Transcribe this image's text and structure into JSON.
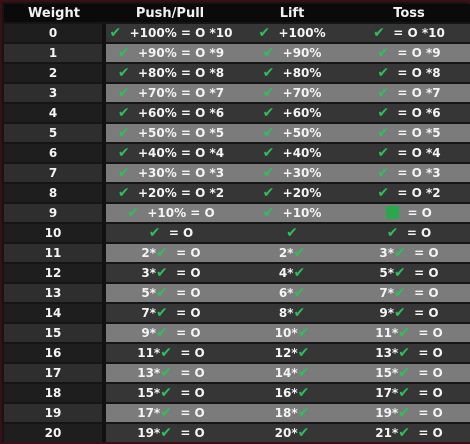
{
  "header": {
    "weight": "Weight",
    "push_pull": "Push/Pull",
    "lift": "Lift",
    "toss": "Toss"
  },
  "icons": {
    "logo": "chess-rook-emblem-icon",
    "check": "checkmark-icon",
    "square": "square-icon"
  },
  "colors": {
    "check": "#2fbf5a",
    "row_light": "#7b7b7b",
    "row_dark": "#363636",
    "border": "#3a1016"
  },
  "rows": [
    {
      "w": "0",
      "pp": {
        "pre": "",
        "post": "+100% = O *10",
        "ring": "O",
        "mult": "*10"
      },
      "lift": {
        "post": "+100%"
      },
      "toss": {
        "post": "= O *10"
      }
    },
    {
      "w": "1",
      "pp": {
        "post": "+90% = O *9"
      },
      "lift": {
        "post": "+90%"
      },
      "toss": {
        "post": "= O *9"
      }
    },
    {
      "w": "2",
      "pp": {
        "post": "+80% = O *8"
      },
      "lift": {
        "post": "+80%"
      },
      "toss": {
        "post": "= O *8"
      }
    },
    {
      "w": "3",
      "pp": {
        "post": "+70% = O *7"
      },
      "lift": {
        "post": "+70%"
      },
      "toss": {
        "post": "= O *7"
      }
    },
    {
      "w": "4",
      "pp": {
        "post": "+60% = O *6"
      },
      "lift": {
        "post": "+60%"
      },
      "toss": {
        "post": "= O *6"
      }
    },
    {
      "w": "5",
      "pp": {
        "post": "+50% = O *5"
      },
      "lift": {
        "post": "+50%"
      },
      "toss": {
        "post": "= O *5"
      }
    },
    {
      "w": "6",
      "pp": {
        "post": "+40% = O *4"
      },
      "lift": {
        "post": "+40%"
      },
      "toss": {
        "post": "= O *4"
      }
    },
    {
      "w": "7",
      "pp": {
        "post": "+30% = O *3"
      },
      "lift": {
        "post": "+30%"
      },
      "toss": {
        "post": "= O *3"
      }
    },
    {
      "w": "8",
      "pp": {
        "post": "+20% = O *2"
      },
      "lift": {
        "post": "+20%"
      },
      "toss": {
        "post": "= O *2"
      }
    },
    {
      "w": "9",
      "pp": {
        "post": "+10% = O"
      },
      "lift": {
        "post": "+10%"
      },
      "toss": {
        "post": "= O",
        "square": true
      }
    },
    {
      "w": "10",
      "pp": {
        "post": "= O"
      },
      "lift": {
        "post": ""
      },
      "toss": {
        "post": "= O"
      }
    },
    {
      "w": "11",
      "pp": {
        "pre": "2*",
        "post": "= O"
      },
      "lift": {
        "pre": "2*",
        "post": ""
      },
      "toss": {
        "pre": "3*",
        "post": "= O"
      }
    },
    {
      "w": "12",
      "pp": {
        "pre": "3*",
        "post": "= O"
      },
      "lift": {
        "pre": "4*",
        "post": ""
      },
      "toss": {
        "pre": "5*",
        "post": "= O"
      }
    },
    {
      "w": "13",
      "pp": {
        "pre": "5*",
        "post": "= O"
      },
      "lift": {
        "pre": "6*",
        "post": ""
      },
      "toss": {
        "pre": "7*",
        "post": "= O"
      }
    },
    {
      "w": "14",
      "pp": {
        "pre": "7*",
        "post": "= O"
      },
      "lift": {
        "pre": "8*",
        "post": ""
      },
      "toss": {
        "pre": "9*",
        "post": "= O"
      }
    },
    {
      "w": "15",
      "pp": {
        "pre": "9*",
        "post": "= O"
      },
      "lift": {
        "pre": "10*",
        "post": ""
      },
      "toss": {
        "pre": "11*",
        "post": "= O"
      }
    },
    {
      "w": "16",
      "pp": {
        "pre": "11*",
        "post": "= O"
      },
      "lift": {
        "pre": "12*",
        "post": ""
      },
      "toss": {
        "pre": "13*",
        "post": "= O"
      }
    },
    {
      "w": "17",
      "pp": {
        "pre": "13*",
        "post": "= O"
      },
      "lift": {
        "pre": "14*",
        "post": ""
      },
      "toss": {
        "pre": "15*",
        "post": "= O"
      }
    },
    {
      "w": "18",
      "pp": {
        "pre": "15*",
        "post": "= O"
      },
      "lift": {
        "pre": "16*",
        "post": ""
      },
      "toss": {
        "pre": "17*",
        "post": "= O"
      }
    },
    {
      "w": "19",
      "pp": {
        "pre": "17*",
        "post": "= O"
      },
      "lift": {
        "pre": "18*",
        "post": ""
      },
      "toss": {
        "pre": "19*",
        "post": "= O"
      }
    },
    {
      "w": "20",
      "pp": {
        "pre": "19*",
        "post": "= O"
      },
      "lift": {
        "pre": "20*",
        "post": ""
      },
      "toss": {
        "pre": "21*",
        "post": "= O"
      }
    }
  ]
}
